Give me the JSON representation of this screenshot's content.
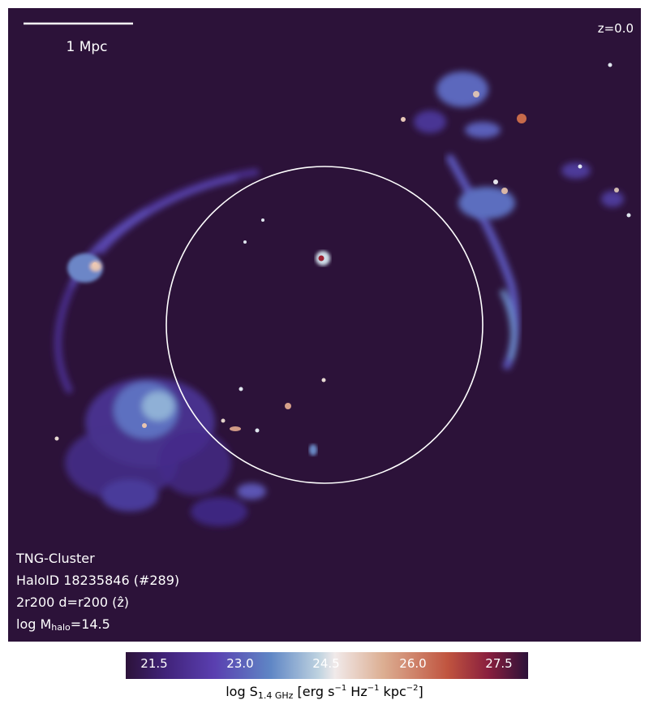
{
  "scale_bar": {
    "label": "1 Mpc"
  },
  "redshift": {
    "label": "z=0.0"
  },
  "info": {
    "line1": "TNG-Cluster",
    "line2": "HaloID 18235846 (#289)",
    "line3": "2r200 d=r200 (ẑ)",
    "line4_prefix": "log M",
    "line4_sub": "halo",
    "line4_suffix": "=14.5"
  },
  "colorbar": {
    "ticks": [
      "21.5",
      "23.0",
      "24.5",
      "26.0",
      "27.5"
    ],
    "tick_colors": [
      "#ffffff",
      "#ffffff",
      "#ffffff",
      "#ffffff",
      "#ffffff"
    ],
    "label_prefix": "log S",
    "label_sub": "1.4 GHz",
    "label_mid": " [erg s",
    "sup1": "−1",
    "label_mid2": " Hz",
    "sup2": "−1",
    "label_mid3": " kpc",
    "sup3": "−2",
    "label_end": "]"
  },
  "colors": {
    "background": "#2c1239",
    "circle": "#ffffff"
  }
}
